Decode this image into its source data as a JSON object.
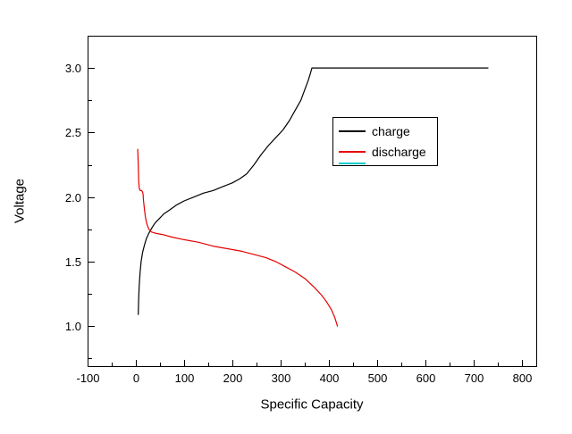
{
  "chart_data": {
    "type": "line",
    "title": "",
    "xlabel": "Specific Capacity",
    "ylabel": "Voltage",
    "xlim": [
      -100,
      830
    ],
    "ylim": [
      0.69,
      3.25
    ],
    "x_ticks": [
      -100,
      0,
      100,
      200,
      300,
      400,
      500,
      600,
      700,
      800
    ],
    "x_tick_labels": [
      "-100",
      "0",
      "100",
      "200",
      "300",
      "400",
      "500",
      "600",
      "700",
      "800"
    ],
    "x_minor_ticks": [
      -50,
      50,
      150,
      250,
      350,
      450,
      550,
      650,
      750
    ],
    "y_ticks": [
      1.0,
      1.5,
      2.0,
      2.5,
      3.0
    ],
    "y_tick_labels": [
      "1.0",
      "1.5",
      "2.0",
      "2.5",
      "3.0"
    ],
    "y_minor_ticks": [
      0.75,
      1.25,
      1.75,
      2.25,
      2.75
    ],
    "grid": false,
    "legend_position": "center-right",
    "legend_extra_color": "#00cccc",
    "axis_color": "#000000",
    "series": [
      {
        "name": "charge",
        "color": "#000000",
        "points": [
          [
            5,
            1.09
          ],
          [
            6,
            1.22
          ],
          [
            7,
            1.32
          ],
          [
            9,
            1.42
          ],
          [
            11,
            1.5
          ],
          [
            14,
            1.57
          ],
          [
            18,
            1.63
          ],
          [
            22,
            1.68
          ],
          [
            27,
            1.72
          ],
          [
            33,
            1.76
          ],
          [
            40,
            1.8
          ],
          [
            48,
            1.83
          ],
          [
            58,
            1.87
          ],
          [
            70,
            1.9
          ],
          [
            85,
            1.94
          ],
          [
            100,
            1.97
          ],
          [
            120,
            2.0
          ],
          [
            140,
            2.03
          ],
          [
            160,
            2.05
          ],
          [
            180,
            2.08
          ],
          [
            200,
            2.11
          ],
          [
            215,
            2.14
          ],
          [
            230,
            2.18
          ],
          [
            245,
            2.25
          ],
          [
            260,
            2.33
          ],
          [
            275,
            2.4
          ],
          [
            290,
            2.46
          ],
          [
            305,
            2.52
          ],
          [
            318,
            2.59
          ],
          [
            330,
            2.67
          ],
          [
            342,
            2.75
          ],
          [
            350,
            2.83
          ],
          [
            357,
            2.9
          ],
          [
            362,
            2.96
          ],
          [
            365,
            3.0
          ],
          [
            730,
            3.0
          ]
        ]
      },
      {
        "name": "discharge",
        "color": "#e60000",
        "points": [
          [
            4,
            2.37
          ],
          [
            5,
            2.25
          ],
          [
            6,
            2.12
          ],
          [
            7,
            2.07
          ],
          [
            9,
            2.05
          ],
          [
            12,
            2.05
          ],
          [
            14,
            2.04
          ],
          [
            15,
            2.02
          ],
          [
            16,
            1.97
          ],
          [
            18,
            1.9
          ],
          [
            20,
            1.84
          ],
          [
            23,
            1.79
          ],
          [
            27,
            1.75
          ],
          [
            32,
            1.73
          ],
          [
            40,
            1.72
          ],
          [
            55,
            1.71
          ],
          [
            75,
            1.69
          ],
          [
            100,
            1.67
          ],
          [
            130,
            1.65
          ],
          [
            160,
            1.62
          ],
          [
            190,
            1.6
          ],
          [
            220,
            1.58
          ],
          [
            250,
            1.55
          ],
          [
            270,
            1.53
          ],
          [
            290,
            1.5
          ],
          [
            310,
            1.46
          ],
          [
            330,
            1.42
          ],
          [
            350,
            1.37
          ],
          [
            370,
            1.3
          ],
          [
            385,
            1.24
          ],
          [
            395,
            1.19
          ],
          [
            405,
            1.13
          ],
          [
            412,
            1.07
          ],
          [
            418,
            1.0
          ]
        ]
      }
    ]
  }
}
